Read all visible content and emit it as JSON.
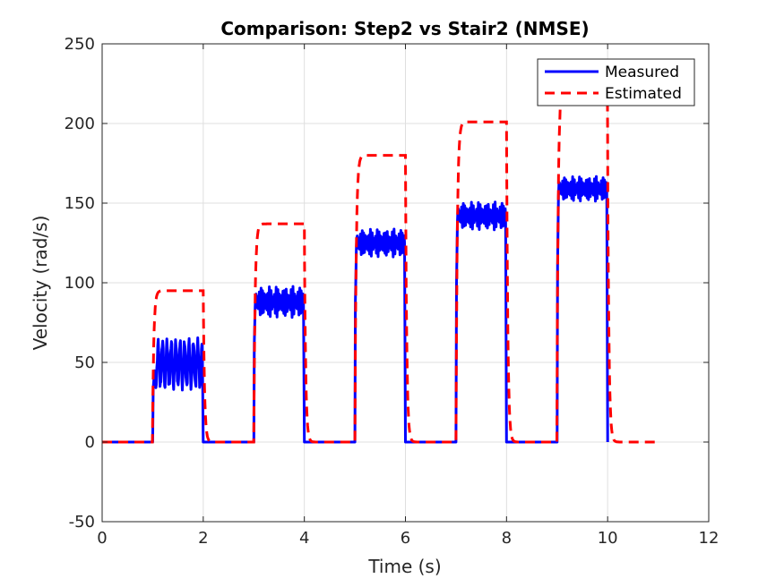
{
  "chart_data": {
    "type": "line",
    "title": "Comparison: Step2 vs Stair2 (NMSE)",
    "xlabel": "Time (s)",
    "ylabel": "Velocity (rad/s)",
    "xlim": [
      0,
      12
    ],
    "ylim": [
      -50,
      250
    ],
    "xticks": [
      0,
      2,
      4,
      6,
      8,
      10,
      12
    ],
    "yticks": [
      -50,
      0,
      50,
      100,
      150,
      200,
      250
    ],
    "xtick_labels": [
      "0",
      "2",
      "4",
      "6",
      "8",
      "10",
      "12"
    ],
    "ytick_labels": [
      "-50",
      "0",
      "50",
      "100",
      "150",
      "200",
      "250"
    ],
    "grid": true,
    "legend_position": "top-right",
    "series": [
      {
        "name": "Measured",
        "color": "#0000ff",
        "style": "solid",
        "pulses": [
          {
            "start": 1.0,
            "end": 2.0,
            "mean": 49,
            "ripple": 14
          },
          {
            "start": 3.0,
            "end": 4.0,
            "mean": 88,
            "ripple": 10
          },
          {
            "start": 5.0,
            "end": 6.0,
            "mean": 125,
            "ripple": 9
          },
          {
            "start": 7.0,
            "end": 8.0,
            "mean": 142,
            "ripple": 9
          },
          {
            "start": 9.0,
            "end": 10.0,
            "mean": 159,
            "ripple": 8
          }
        ]
      },
      {
        "name": "Estimated",
        "color": "#ff0000",
        "style": "dashed",
        "pulses": [
          {
            "start": 1.0,
            "end": 2.0,
            "level": 95
          },
          {
            "start": 3.0,
            "end": 4.0,
            "level": 137
          },
          {
            "start": 5.0,
            "end": 6.0,
            "level": 180
          },
          {
            "start": 7.0,
            "end": 8.0,
            "level": 201
          },
          {
            "start": 9.0,
            "end": 10.0,
            "level": 225
          }
        ],
        "x_end": 11.0
      }
    ]
  }
}
